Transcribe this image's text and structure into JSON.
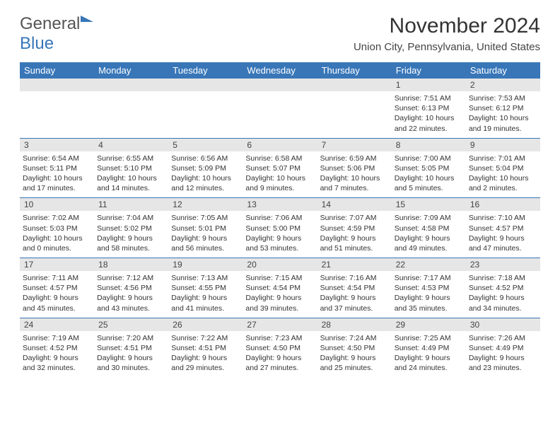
{
  "logo": {
    "part1": "General",
    "part2": "Blue"
  },
  "title": "November 2024",
  "location": "Union City, Pennsylvania, United States",
  "colors": {
    "header_bg": "#3876b8",
    "header_fg": "#ffffff",
    "daynum_bg": "#e6e6e6",
    "text": "#333333",
    "logo_gray": "#555555",
    "logo_blue": "#3876b8",
    "row_sep": "#3876b8"
  },
  "fonts": {
    "title_size": 30,
    "location_size": 15,
    "dayhead_size": 13,
    "daynum_size": 12,
    "detail_size": 10.5
  },
  "day_headers": [
    "Sunday",
    "Monday",
    "Tuesday",
    "Wednesday",
    "Thursday",
    "Friday",
    "Saturday"
  ],
  "weeks": [
    [
      null,
      null,
      null,
      null,
      null,
      {
        "n": "1",
        "sr": "Sunrise: 7:51 AM",
        "ss": "Sunset: 6:13 PM",
        "dl": "Daylight: 10 hours and 22 minutes."
      },
      {
        "n": "2",
        "sr": "Sunrise: 7:53 AM",
        "ss": "Sunset: 6:12 PM",
        "dl": "Daylight: 10 hours and 19 minutes."
      }
    ],
    [
      {
        "n": "3",
        "sr": "Sunrise: 6:54 AM",
        "ss": "Sunset: 5:11 PM",
        "dl": "Daylight: 10 hours and 17 minutes."
      },
      {
        "n": "4",
        "sr": "Sunrise: 6:55 AM",
        "ss": "Sunset: 5:10 PM",
        "dl": "Daylight: 10 hours and 14 minutes."
      },
      {
        "n": "5",
        "sr": "Sunrise: 6:56 AM",
        "ss": "Sunset: 5:09 PM",
        "dl": "Daylight: 10 hours and 12 minutes."
      },
      {
        "n": "6",
        "sr": "Sunrise: 6:58 AM",
        "ss": "Sunset: 5:07 PM",
        "dl": "Daylight: 10 hours and 9 minutes."
      },
      {
        "n": "7",
        "sr": "Sunrise: 6:59 AM",
        "ss": "Sunset: 5:06 PM",
        "dl": "Daylight: 10 hours and 7 minutes."
      },
      {
        "n": "8",
        "sr": "Sunrise: 7:00 AM",
        "ss": "Sunset: 5:05 PM",
        "dl": "Daylight: 10 hours and 5 minutes."
      },
      {
        "n": "9",
        "sr": "Sunrise: 7:01 AM",
        "ss": "Sunset: 5:04 PM",
        "dl": "Daylight: 10 hours and 2 minutes."
      }
    ],
    [
      {
        "n": "10",
        "sr": "Sunrise: 7:02 AM",
        "ss": "Sunset: 5:03 PM",
        "dl": "Daylight: 10 hours and 0 minutes."
      },
      {
        "n": "11",
        "sr": "Sunrise: 7:04 AM",
        "ss": "Sunset: 5:02 PM",
        "dl": "Daylight: 9 hours and 58 minutes."
      },
      {
        "n": "12",
        "sr": "Sunrise: 7:05 AM",
        "ss": "Sunset: 5:01 PM",
        "dl": "Daylight: 9 hours and 56 minutes."
      },
      {
        "n": "13",
        "sr": "Sunrise: 7:06 AM",
        "ss": "Sunset: 5:00 PM",
        "dl": "Daylight: 9 hours and 53 minutes."
      },
      {
        "n": "14",
        "sr": "Sunrise: 7:07 AM",
        "ss": "Sunset: 4:59 PM",
        "dl": "Daylight: 9 hours and 51 minutes."
      },
      {
        "n": "15",
        "sr": "Sunrise: 7:09 AM",
        "ss": "Sunset: 4:58 PM",
        "dl": "Daylight: 9 hours and 49 minutes."
      },
      {
        "n": "16",
        "sr": "Sunrise: 7:10 AM",
        "ss": "Sunset: 4:57 PM",
        "dl": "Daylight: 9 hours and 47 minutes."
      }
    ],
    [
      {
        "n": "17",
        "sr": "Sunrise: 7:11 AM",
        "ss": "Sunset: 4:57 PM",
        "dl": "Daylight: 9 hours and 45 minutes."
      },
      {
        "n": "18",
        "sr": "Sunrise: 7:12 AM",
        "ss": "Sunset: 4:56 PM",
        "dl": "Daylight: 9 hours and 43 minutes."
      },
      {
        "n": "19",
        "sr": "Sunrise: 7:13 AM",
        "ss": "Sunset: 4:55 PM",
        "dl": "Daylight: 9 hours and 41 minutes."
      },
      {
        "n": "20",
        "sr": "Sunrise: 7:15 AM",
        "ss": "Sunset: 4:54 PM",
        "dl": "Daylight: 9 hours and 39 minutes."
      },
      {
        "n": "21",
        "sr": "Sunrise: 7:16 AM",
        "ss": "Sunset: 4:54 PM",
        "dl": "Daylight: 9 hours and 37 minutes."
      },
      {
        "n": "22",
        "sr": "Sunrise: 7:17 AM",
        "ss": "Sunset: 4:53 PM",
        "dl": "Daylight: 9 hours and 35 minutes."
      },
      {
        "n": "23",
        "sr": "Sunrise: 7:18 AM",
        "ss": "Sunset: 4:52 PM",
        "dl": "Daylight: 9 hours and 34 minutes."
      }
    ],
    [
      {
        "n": "24",
        "sr": "Sunrise: 7:19 AM",
        "ss": "Sunset: 4:52 PM",
        "dl": "Daylight: 9 hours and 32 minutes."
      },
      {
        "n": "25",
        "sr": "Sunrise: 7:20 AM",
        "ss": "Sunset: 4:51 PM",
        "dl": "Daylight: 9 hours and 30 minutes."
      },
      {
        "n": "26",
        "sr": "Sunrise: 7:22 AM",
        "ss": "Sunset: 4:51 PM",
        "dl": "Daylight: 9 hours and 29 minutes."
      },
      {
        "n": "27",
        "sr": "Sunrise: 7:23 AM",
        "ss": "Sunset: 4:50 PM",
        "dl": "Daylight: 9 hours and 27 minutes."
      },
      {
        "n": "28",
        "sr": "Sunrise: 7:24 AM",
        "ss": "Sunset: 4:50 PM",
        "dl": "Daylight: 9 hours and 25 minutes."
      },
      {
        "n": "29",
        "sr": "Sunrise: 7:25 AM",
        "ss": "Sunset: 4:49 PM",
        "dl": "Daylight: 9 hours and 24 minutes."
      },
      {
        "n": "30",
        "sr": "Sunrise: 7:26 AM",
        "ss": "Sunset: 4:49 PM",
        "dl": "Daylight: 9 hours and 23 minutes."
      }
    ]
  ]
}
